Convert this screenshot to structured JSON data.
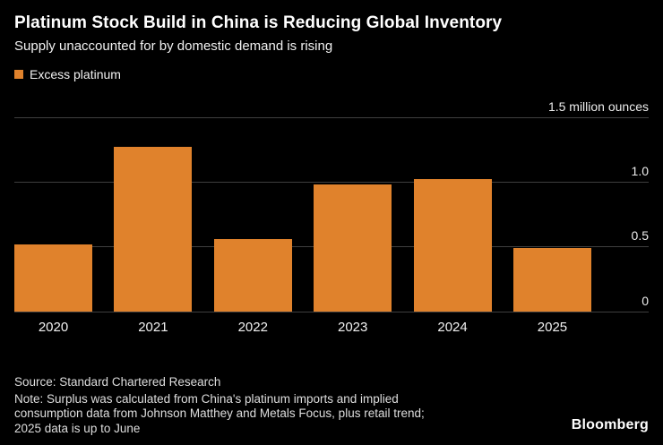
{
  "header": {
    "title": "Platinum Stock Build in China is Reducing Global Inventory",
    "subtitle": "Supply unaccounted for by domestic demand is rising"
  },
  "legend": {
    "label": "Excess platinum"
  },
  "chart_data": {
    "type": "bar",
    "categories": [
      "2020",
      "2021",
      "2022",
      "2023",
      "2024",
      "2025"
    ],
    "values": [
      0.52,
      1.27,
      0.56,
      0.98,
      1.02,
      0.49
    ],
    "title": "Platinum Stock Build in China is Reducing Global Inventory",
    "xlabel": "",
    "ylabel": "million ounces",
    "ylim": [
      0,
      1.5
    ],
    "yticks": [
      {
        "value": 1.5,
        "label": "1.5 million ounces"
      },
      {
        "value": 1.0,
        "label": "1.0"
      },
      {
        "value": 0.5,
        "label": "0.5"
      },
      {
        "value": 0.0,
        "label": "0"
      }
    ],
    "bar_color": "#E0822C",
    "background_color": "#000000",
    "grid": true,
    "legend_position": "top-left",
    "legend_entries": [
      "Excess platinum"
    ]
  },
  "footer": {
    "source": "Source: Standard Chartered Research",
    "note": "Note: Surplus was calculated from China's platinum imports and implied consumption data from Johnson Matthey and Metals Focus, plus retail trend; 2025 data is up to June",
    "brand": "Bloomberg"
  }
}
